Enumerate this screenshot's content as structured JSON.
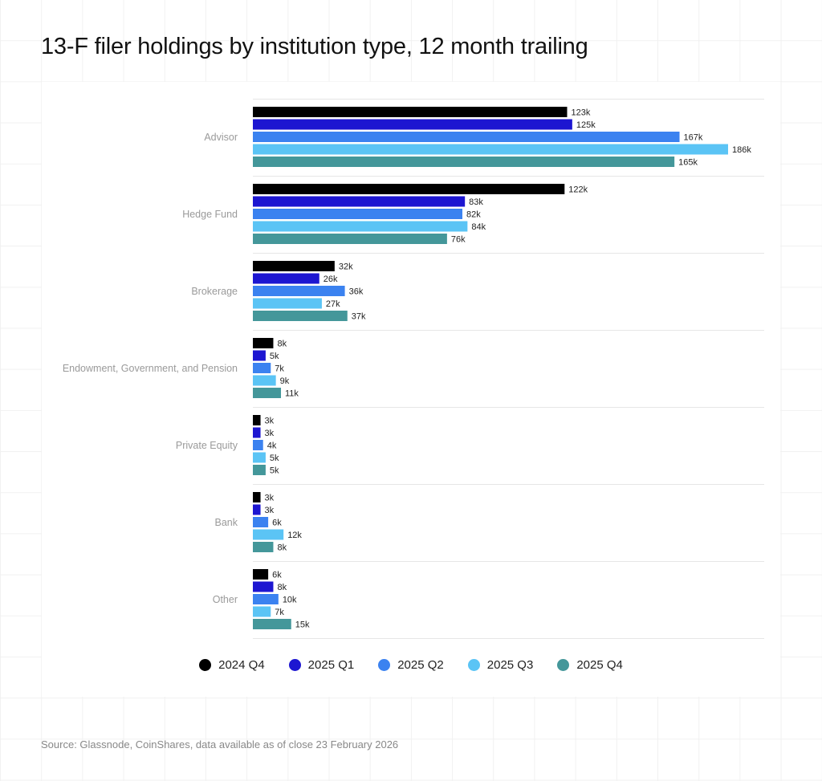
{
  "title": "13-F filer holdings by institution type, 12 month trailing",
  "source": "Source: Glassnode, CoinShares, data available as of close 23 February 2026",
  "chart_data": {
    "type": "bar",
    "orientation": "horizontal",
    "title": "13-F filer holdings by institution type, 12 month trailing",
    "categories": [
      "Advisor",
      "Hedge Fund",
      "Brokerage",
      "Endowment, Government, and Pension",
      "Private Equity",
      "Bank",
      "Other"
    ],
    "series": [
      {
        "name": "2024 Q4",
        "color": "#000000",
        "values": [
          123,
          122,
          32,
          8,
          3,
          3,
          6
        ],
        "labels": [
          "123k",
          "122k",
          "32k",
          "8k",
          "3k",
          "3k",
          "6k"
        ]
      },
      {
        "name": "2025 Q1",
        "color": "#1d16d1",
        "values": [
          125,
          83,
          26,
          5,
          3,
          3,
          8
        ],
        "labels": [
          "125k",
          "83k",
          "26k",
          "5k",
          "3k",
          "3k",
          "8k"
        ]
      },
      {
        "name": "2025 Q2",
        "color": "#3b82f0",
        "values": [
          167,
          82,
          36,
          7,
          4,
          6,
          10
        ],
        "labels": [
          "167k",
          "82k",
          "36k",
          "7k",
          "4k",
          "6k",
          "10k"
        ]
      },
      {
        "name": "2025 Q3",
        "color": "#5bc4f5",
        "values": [
          186,
          84,
          27,
          9,
          5,
          12,
          7
        ],
        "labels": [
          "186k",
          "84k",
          "27k",
          "9k",
          "5k",
          "12k",
          "7k"
        ]
      },
      {
        "name": "2025 Q4",
        "color": "#44979a",
        "values": [
          165,
          76,
          37,
          11,
          5,
          8,
          15
        ],
        "labels": [
          "165k",
          "76k",
          "37k",
          "11k",
          "5k",
          "8k",
          "15k"
        ]
      }
    ],
    "unit": "k",
    "legend": "bottom",
    "grid": false
  }
}
